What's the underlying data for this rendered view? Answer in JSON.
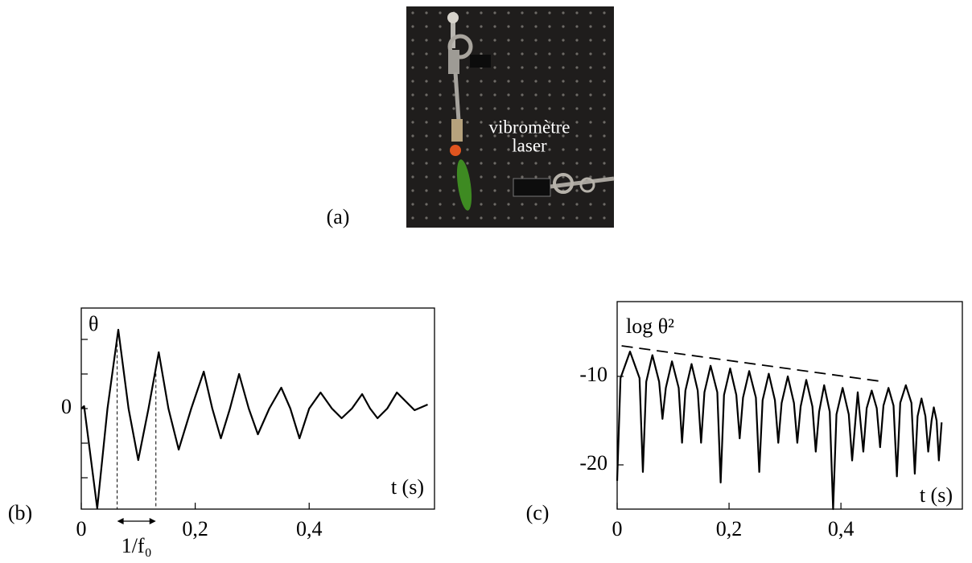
{
  "figure": {
    "panel_a": {
      "label": "(a)",
      "photo_text": [
        "vibromètre",
        "laser"
      ]
    }
  },
  "chart_data": [
    {
      "type": "line",
      "panel_label": "(b)",
      "x_label": "t (s)",
      "y_label": "θ",
      "x": [
        0,
        0.005,
        0.028,
        0.046,
        0.065,
        0.083,
        0.1,
        0.118,
        0.136,
        0.153,
        0.171,
        0.193,
        0.215,
        0.23,
        0.245,
        0.261,
        0.277,
        0.294,
        0.31,
        0.33,
        0.351,
        0.367,
        0.383,
        0.4,
        0.42,
        0.44,
        0.457,
        0.475,
        0.493,
        0.507,
        0.52,
        0.537,
        0.554,
        0.585,
        0.608
      ],
      "series": [
        {
          "color": "#000000",
          "values": [
            0,
            0.03,
            -1.24,
            0,
            0.98,
            0,
            -0.64,
            0,
            0.7,
            0,
            -0.51,
            0,
            0.46,
            0,
            -0.37,
            0,
            0.43,
            0,
            -0.32,
            0,
            0.26,
            0,
            -0.37,
            0,
            0.2,
            0,
            -0.12,
            0,
            0.18,
            0,
            -0.12,
            0,
            0.2,
            -0.02,
            0.05
          ]
        }
      ],
      "xlim": [
        0,
        0.62
      ],
      "ylim": [
        -1.25,
        1.25
      ],
      "xticks": [
        0,
        {
          "value": 0.2,
          "label": "0,2"
        },
        {
          "value": 0.4,
          "label": "0,4"
        }
      ],
      "yticks": [
        0
      ],
      "yminorticks": [
        -0.86,
        -0.43,
        0.43,
        0.86
      ],
      "period_markers": {
        "x": [
          0.063,
          0.131
        ],
        "label": "1/f₀"
      }
    },
    {
      "type": "line",
      "panel_label": "(c)",
      "x_label": "t (s)",
      "y_label": "log θ²",
      "x": [
        0,
        0.006,
        0.023,
        0.04,
        0.046,
        0.052,
        0.063,
        0.075,
        0.081,
        0.087,
        0.098,
        0.11,
        0.116,
        0.122,
        0.133,
        0.144,
        0.15,
        0.156,
        0.167,
        0.179,
        0.185,
        0.191,
        0.202,
        0.213,
        0.219,
        0.225,
        0.236,
        0.248,
        0.254,
        0.26,
        0.271,
        0.282,
        0.288,
        0.294,
        0.305,
        0.316,
        0.322,
        0.328,
        0.338,
        0.349,
        0.355,
        0.361,
        0.37,
        0.38,
        0.386,
        0.392,
        0.403,
        0.414,
        0.42,
        0.43,
        0.44,
        0.446,
        0.455,
        0.464,
        0.47,
        0.476,
        0.485,
        0.494,
        0.5,
        0.506,
        0.516,
        0.526,
        0.532,
        0.537,
        0.544,
        0.551,
        0.556,
        0.562,
        0.566,
        0.571,
        0.575,
        0.58
      ],
      "series": [
        {
          "color": "#000000",
          "values": [
            -21.8,
            -10.2,
            -7.2,
            -10.2,
            -20.8,
            -10.6,
            -7.6,
            -10.6,
            -14.8,
            -11.3,
            -8.3,
            -11.3,
            -17.5,
            -11.6,
            -8.6,
            -11.6,
            -17.5,
            -11.8,
            -8.8,
            -11.8,
            -22.0,
            -12.1,
            -9.1,
            -12.1,
            -17.0,
            -12.4,
            -9.4,
            -12.4,
            -20.8,
            -12.7,
            -9.7,
            -12.7,
            -17.5,
            -13.0,
            -10.0,
            -13.0,
            -17.5,
            -13.4,
            -10.4,
            -13.4,
            -18.5,
            -14.0,
            -11.0,
            -14.0,
            -25.0,
            -14.3,
            -11.3,
            -14.3,
            -19.5,
            -11.8,
            -18.5,
            -13.6,
            -11.6,
            -13.6,
            -18.0,
            -13.3,
            -11.3,
            -13.3,
            -21.3,
            -13.0,
            -11.0,
            -13.0,
            -21.0,
            -14.5,
            -12.5,
            -14.5,
            -18.5,
            -15.0,
            -13.5,
            -15.0,
            -19.5,
            -15.2
          ]
        }
      ],
      "xlim": [
        0,
        0.617
      ],
      "ylim": [
        -25.0,
        -1.55
      ],
      "xticks": [
        0,
        {
          "value": 0.2,
          "label": "0,2"
        },
        {
          "value": 0.4,
          "label": "0,4"
        }
      ],
      "yticks": [
        -10,
        -20
      ],
      "trend": {
        "x": [
          0.008,
          0.476
        ],
        "y": [
          -6.55,
          -10.6
        ]
      }
    }
  ]
}
